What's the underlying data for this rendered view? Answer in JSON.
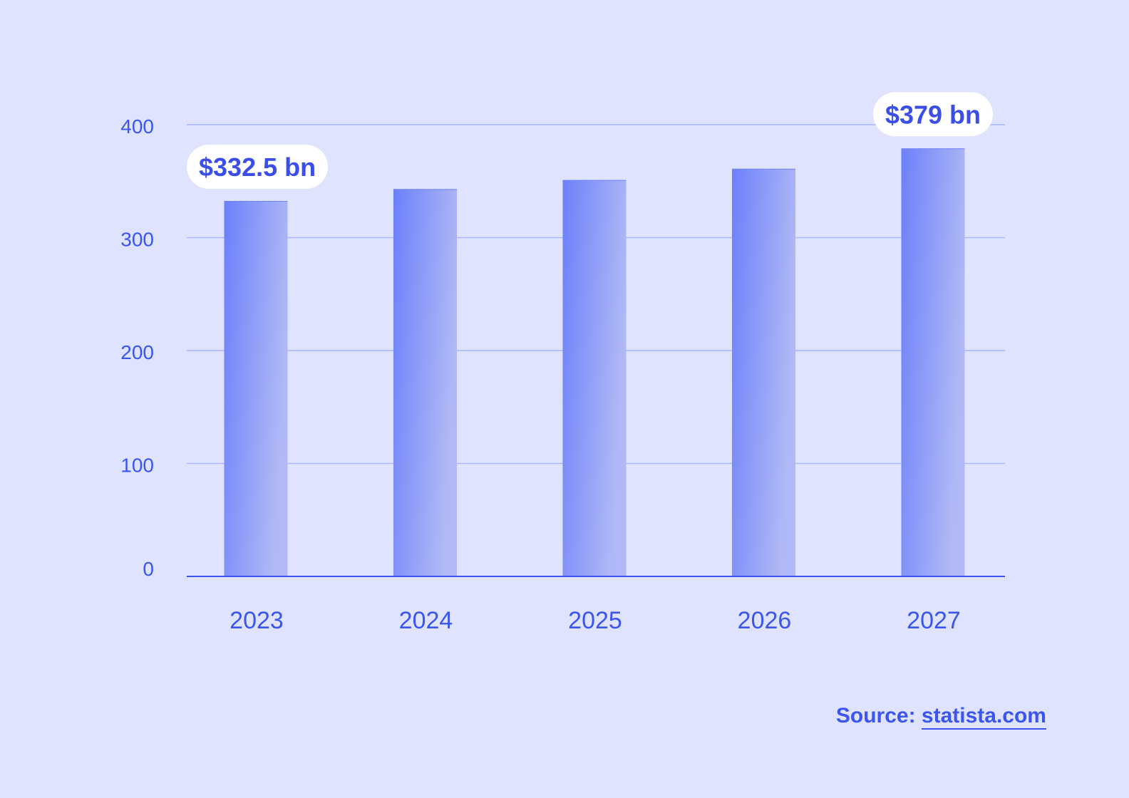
{
  "chart_data": {
    "type": "bar",
    "title": "",
    "xlabel": "",
    "ylabel": "",
    "categories": [
      "2023",
      "2024",
      "2025",
      "2026",
      "2027"
    ],
    "values": [
      332.5,
      343,
      351,
      361,
      379
    ],
    "ylim": [
      0,
      400
    ],
    "yticks": [
      "0",
      "100",
      "200",
      "300",
      "400"
    ],
    "grid": true,
    "annotations": [
      {
        "category": "2023",
        "text": "$332.5 bn"
      },
      {
        "category": "2027",
        "text": "$379 bn"
      }
    ]
  },
  "source": {
    "label": "Source:",
    "link_text": "statista.com"
  },
  "colors": {
    "background": "#dfe3fe",
    "accent": "#3b55f0",
    "bar_start": "#6c80fa",
    "bar_end": "#b0b9f5",
    "grid": "#a9b6fb"
  }
}
